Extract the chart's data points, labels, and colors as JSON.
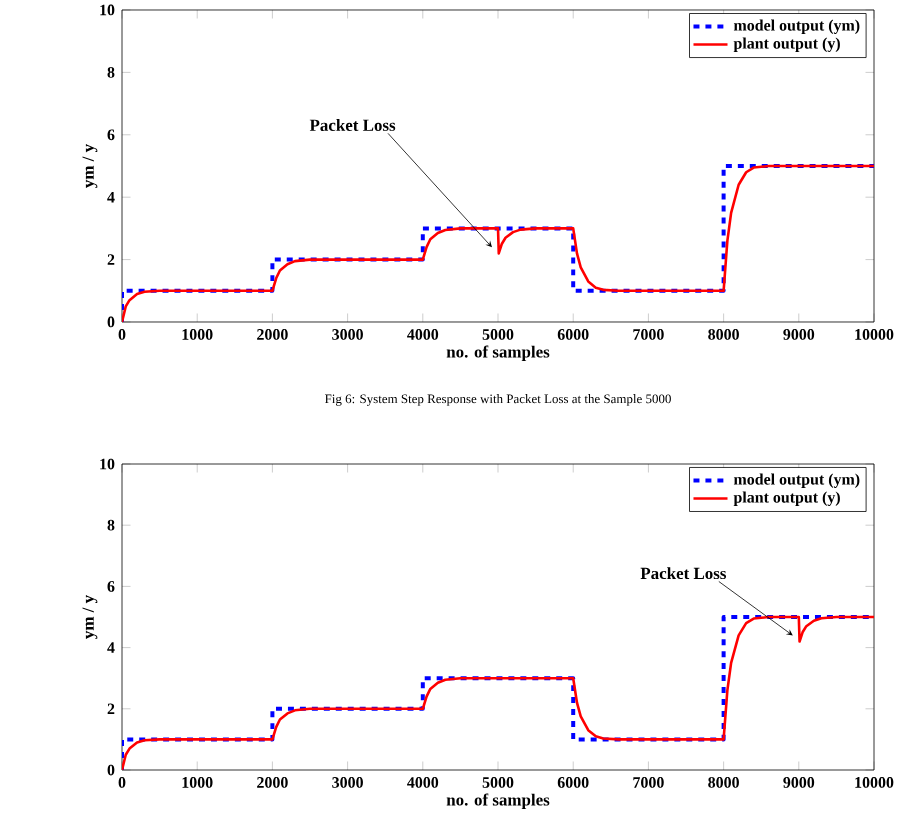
{
  "chart_data": [
    {
      "type": "line",
      "xlabel": "no. of samples",
      "ylabel": "ym / y",
      "xlim": [
        0,
        10000
      ],
      "ylim": [
        0,
        10
      ],
      "xticks": [
        0,
        1000,
        2000,
        3000,
        4000,
        5000,
        6000,
        7000,
        8000,
        9000,
        10000
      ],
      "yticks": [
        0,
        2,
        4,
        6,
        8,
        10
      ],
      "legend": "top right",
      "grid": false,
      "annotations": [
        {
          "text": "Packet Loss",
          "x": 5000,
          "y": 2.2
        },
        "Fig 6: System Step Response with Packet Loss at the Sample 5000"
      ],
      "series": [
        {
          "name": "model output (ym)",
          "color": "#0000ff",
          "line_style": "dashed",
          "x": [
            0,
            0,
            2000,
            2000,
            4000,
            4000,
            6000,
            6000,
            8000,
            8000,
            10000
          ],
          "values": [
            0,
            1,
            1,
            2,
            2,
            3,
            3,
            1,
            1,
            5,
            5
          ]
        },
        {
          "name": "plant output (y)",
          "color": "#ff0000",
          "line_style": "solid",
          "x": [
            0,
            50,
            100,
            200,
            300,
            500,
            2000,
            2050,
            2100,
            2200,
            2300,
            2500,
            4000,
            4050,
            4100,
            4200,
            4300,
            4500,
            5000,
            5010,
            5050,
            5100,
            5200,
            5300,
            5500,
            6000,
            6050,
            6100,
            6200,
            6300,
            6400,
            6600,
            8000,
            8050,
            8100,
            8200,
            8300,
            8400,
            8600,
            10000
          ],
          "values": [
            0,
            0.5,
            0.7,
            0.9,
            0.97,
            1,
            1,
            1.4,
            1.65,
            1.85,
            1.95,
            2,
            2,
            2.4,
            2.65,
            2.85,
            2.95,
            3,
            3,
            2.2,
            2.5,
            2.7,
            2.88,
            2.96,
            3,
            3,
            2.2,
            1.75,
            1.3,
            1.1,
            1.03,
            1,
            1,
            2.6,
            3.5,
            4.4,
            4.8,
            4.95,
            5,
            5
          ]
        }
      ]
    },
    {
      "type": "line",
      "xlabel": "no. of samples",
      "ylabel": "ym / y",
      "xlim": [
        0,
        10000
      ],
      "ylim": [
        0,
        10
      ],
      "xticks": [
        0,
        1000,
        2000,
        3000,
        4000,
        5000,
        6000,
        7000,
        8000,
        9000,
        10000
      ],
      "yticks": [
        0,
        2,
        4,
        6,
        8,
        10
      ],
      "legend": "top right",
      "grid": false,
      "annotations": [
        {
          "text": "Packet Loss",
          "x": 9000,
          "y": 4.2
        }
      ],
      "series": [
        {
          "name": "model output (ym)",
          "color": "#0000ff",
          "line_style": "dashed",
          "x": [
            0,
            0,
            2000,
            2000,
            4000,
            4000,
            6000,
            6000,
            8000,
            8000,
            10000
          ],
          "values": [
            0,
            1,
            1,
            2,
            2,
            3,
            3,
            1,
            1,
            5,
            5
          ]
        },
        {
          "name": "plant output (y)",
          "color": "#ff0000",
          "line_style": "solid",
          "x": [
            0,
            50,
            100,
            200,
            300,
            500,
            2000,
            2050,
            2100,
            2200,
            2300,
            2500,
            4000,
            4050,
            4100,
            4200,
            4300,
            4500,
            6000,
            6050,
            6100,
            6200,
            6300,
            6400,
            6600,
            8000,
            8050,
            8100,
            8200,
            8300,
            8400,
            8600,
            9000,
            9010,
            9050,
            9100,
            9200,
            9300,
            9500,
            10000
          ],
          "values": [
            0,
            0.5,
            0.7,
            0.9,
            0.97,
            1,
            1,
            1.4,
            1.65,
            1.85,
            1.95,
            2,
            2,
            2.4,
            2.65,
            2.85,
            2.95,
            3,
            3,
            2.2,
            1.75,
            1.3,
            1.1,
            1.03,
            1,
            1,
            2.6,
            3.5,
            4.4,
            4.8,
            4.95,
            5,
            5,
            4.2,
            4.5,
            4.7,
            4.88,
            4.96,
            5,
            5
          ]
        }
      ]
    }
  ]
}
